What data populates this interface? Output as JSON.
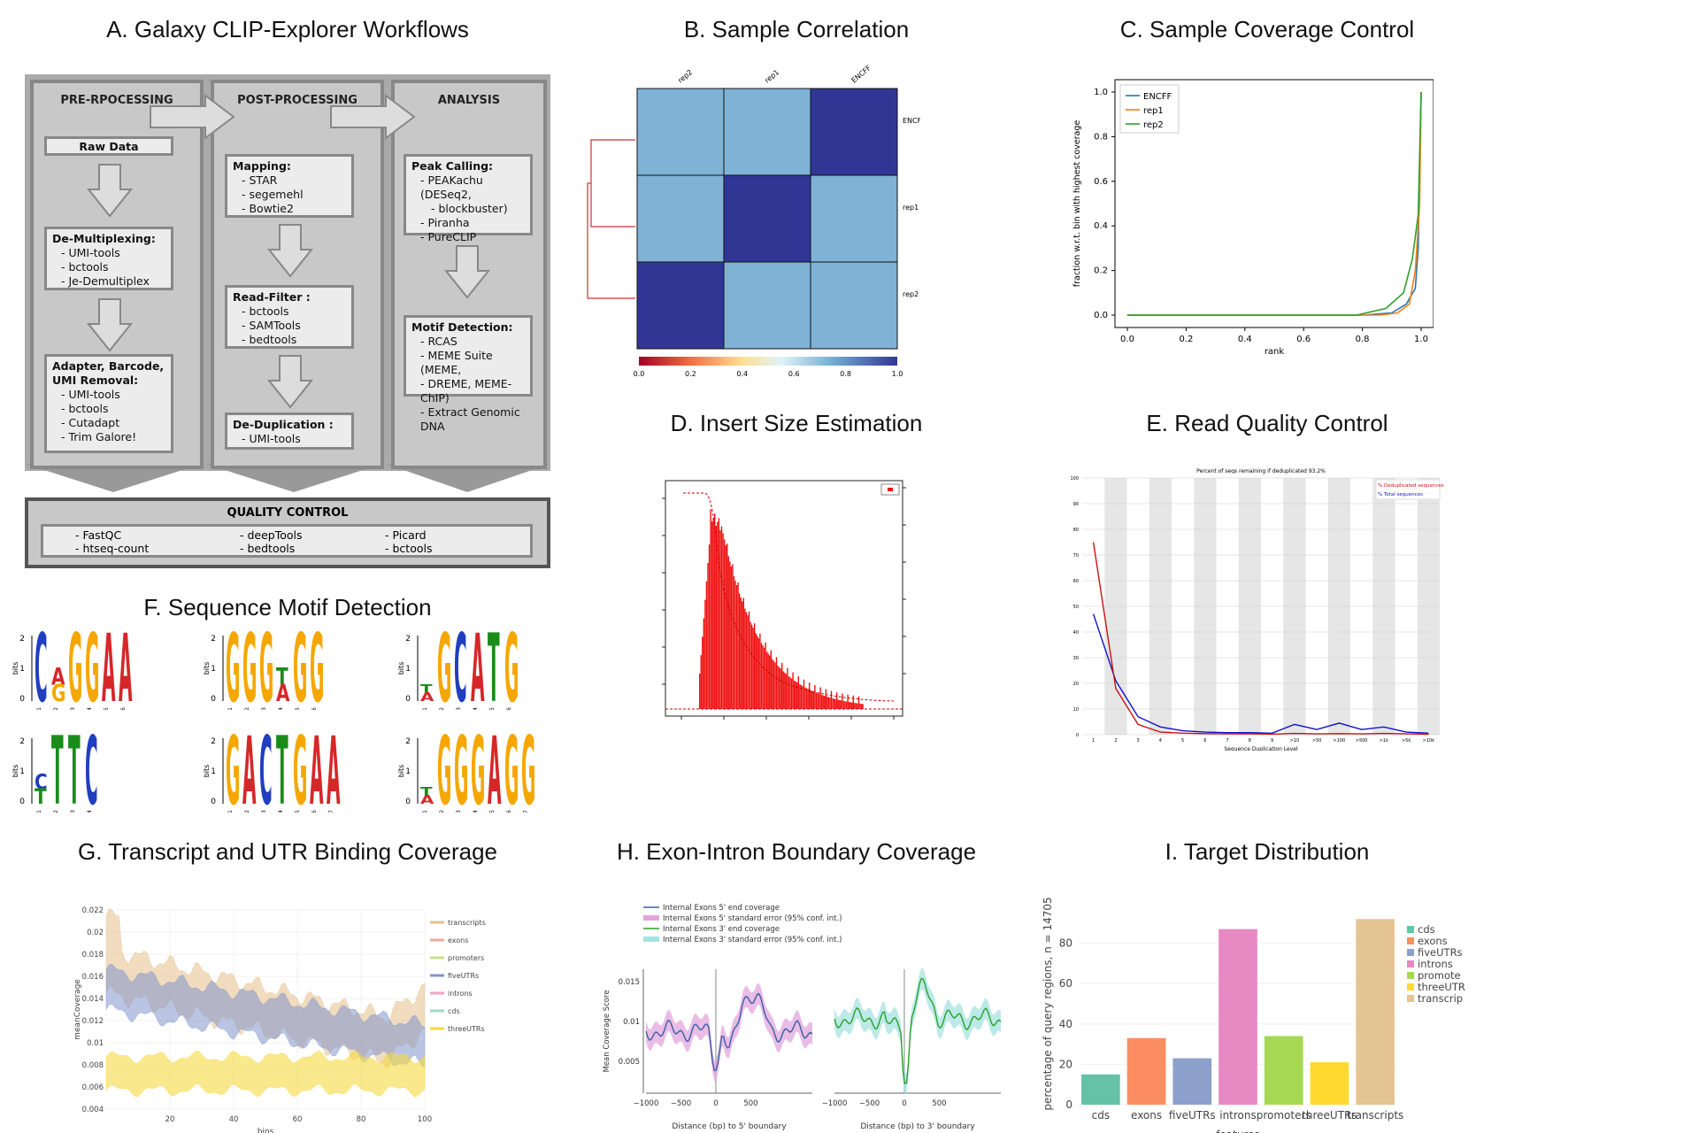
{
  "panels": {
    "a": "A. Galaxy CLIP-Explorer Workflows",
    "b": "B. Sample Correlation",
    "c": "C. Sample Coverage Control",
    "d": "D. Insert Size Estimation",
    "e": "E. Read Quality Control",
    "f": "F. Sequence Motif Detection",
    "g": "G. Transcript and UTR Binding Coverage",
    "h": "H. Exon-Intron Boundary Coverage",
    "i": "I. Target Distribution"
  },
  "workflow": {
    "columns": [
      "PRE-RPOCESSING",
      "POST-PROCESSING",
      "ANALYSIS"
    ],
    "raw_data": "Raw Data",
    "demux": {
      "title": "De-Multiplexing:",
      "items": [
        "UMI-tools",
        "bctools",
        "Je-Demultiplex"
      ]
    },
    "adapter": {
      "title1": "Adapter, Barcode,",
      "title2": "UMI Removal:",
      "items": [
        "UMI-tools",
        "bctools",
        "Cutadapt",
        "Trim Galore!"
      ]
    },
    "mapping": {
      "title": "Mapping:",
      "items": [
        "STAR",
        "segemehl",
        "Bowtie2"
      ]
    },
    "readfilter": {
      "title": "Read-Filter :",
      "items": [
        "bctools",
        "SAMTools",
        "bedtools"
      ]
    },
    "dedup": {
      "title": "De-Duplication :",
      "items": [
        "UMI-tools"
      ]
    },
    "peak": {
      "title": "Peak Calling:",
      "items": [
        "PEAKachu (DESeq2,",
        "blockbuster)",
        "Piranha",
        "PureCLIP"
      ]
    },
    "motif": {
      "title": "Motif Detection:",
      "items": [
        "RCAS",
        "MEME Suite (MEME,",
        "DREME, MEME-ChIP)",
        "Extract Genomic DNA"
      ]
    },
    "qc_title": "QUALITY CONTROL",
    "qc_items": [
      "FastQC",
      "htseq-count",
      "deepTools",
      "bedtools",
      "Picard",
      "bctools"
    ]
  },
  "correlation": {
    "col_labels": [
      "rep2",
      "rep1",
      "ENCFF"
    ],
    "row_labels": [
      "ENCFF",
      "rep1",
      "rep2"
    ],
    "matrix": [
      [
        0.6,
        0.6,
        1.0
      ],
      [
        0.6,
        1.0,
        0.6
      ],
      [
        1.0,
        0.6,
        0.6
      ]
    ],
    "colorbar_ticks": [
      "0.0",
      "0.2",
      "0.4",
      "0.6",
      "0.8",
      "1.0"
    ],
    "colors": {
      "high": "#313695",
      "mid": "#7fb2d5"
    }
  },
  "coverage": {
    "ylabel": "fraction w.r.t. bin with highest coverage",
    "xlabel": "rank",
    "xticks": [
      "0.0",
      "0.2",
      "0.4",
      "0.6",
      "0.8",
      "1.0"
    ],
    "yticks": [
      "0.0",
      "0.2",
      "0.4",
      "0.6",
      "0.8",
      "1.0"
    ],
    "series": [
      {
        "name": "ENCFF",
        "color": "#1f77b4"
      },
      {
        "name": "rep1",
        "color": "#ff7f0e"
      },
      {
        "name": "rep2",
        "color": "#2ca02c"
      }
    ]
  },
  "readquality": {
    "title": "Percent of seqs remaining if deduplicated 93.2%",
    "legend": [
      "% Deduplicated sequences",
      "% Total sequences"
    ],
    "xlabel": "Sequence Duplication Level",
    "yticks": [
      "100",
      "90",
      "80",
      "70",
      "60",
      "50",
      "40",
      "30",
      "20",
      "10",
      "0"
    ],
    "xticks": [
      "1",
      "2",
      "3",
      "4",
      "5",
      "6",
      "7",
      "8",
      "9",
      ">10",
      ">50",
      ">100",
      ">500",
      ">1k",
      ">5k",
      ">10k"
    ],
    "dedup": [
      75,
      18,
      4,
      1,
      0.6,
      0.4,
      0.3,
      0.3,
      0.2,
      0.5,
      0.3,
      0.4,
      0.3,
      0.5,
      0.3,
      0.2
    ],
    "total": [
      47,
      21,
      7,
      3,
      1.5,
      1,
      0.8,
      0.8,
      0.6,
      4,
      2,
      4.5,
      2,
      3,
      1,
      0.6
    ]
  },
  "motifs": [
    {
      "letters": [
        "C",
        "A",
        "G",
        "G",
        "A",
        "A"
      ],
      "sub": {
        "1": "G"
      },
      "heights": [
        1.0,
        0.5,
        1.0,
        1.0,
        1.0,
        1.0
      ]
    },
    {
      "letters": [
        "G",
        "G",
        "G",
        "T",
        "G",
        "G"
      ],
      "sub": {
        "3": "A"
      },
      "heights": [
        1.0,
        1.0,
        1.0,
        0.5,
        1.0,
        1.0
      ]
    },
    {
      "letters": [
        "T",
        "G",
        "C",
        "A",
        "T",
        "G"
      ],
      "sub": {
        "0": "A"
      },
      "heights": [
        0.25,
        1.0,
        1.0,
        1.0,
        1.0,
        1.0
      ]
    },
    {
      "letters": [
        "C",
        "T",
        "T",
        "C"
      ],
      "sub": {
        "0": "T"
      },
      "heights": [
        0.45,
        1.0,
        1.0,
        1.0
      ]
    },
    {
      "letters": [
        "G",
        "A",
        "C",
        "T",
        "G",
        "A",
        "A"
      ],
      "sub": {},
      "heights": [
        1.0,
        1.0,
        1.0,
        1.0,
        1.0,
        1.0,
        1.0
      ]
    },
    {
      "letters": [
        "T",
        "G",
        "G",
        "G",
        "A",
        "G",
        "G"
      ],
      "sub": {
        "0": "A"
      },
      "heights": [
        0.25,
        1.0,
        1.0,
        1.0,
        1.0,
        1.0,
        1.0
      ]
    }
  ],
  "motif_ylabel": "bits",
  "motif_colors": {
    "A": "#d62728",
    "C": "#1f3fbf",
    "G": "#f5a700",
    "T": "#198c19"
  },
  "binding": {
    "ylabel": "meanCoverage",
    "xlabel": "bins",
    "yticks": [
      "0.022",
      "0.02",
      "0.018",
      "0.016",
      "0.014",
      "0.012",
      "0.01",
      "0.008",
      "0.006",
      "0.004"
    ],
    "xticks": [
      "20",
      "40",
      "60",
      "80",
      "100"
    ],
    "legend": [
      {
        "name": "transcripts",
        "color": "#e6c08a"
      },
      {
        "name": "exons",
        "color": "#f4a99b"
      },
      {
        "name": "promoters",
        "color": "#c6e087"
      },
      {
        "name": "fiveUTRs",
        "color": "#7f95cc"
      },
      {
        "name": "introns",
        "color": "#f4a4c6"
      },
      {
        "name": "cds",
        "color": "#9fd9c7"
      },
      {
        "name": "threeUTRs",
        "color": "#f6d940"
      }
    ]
  },
  "boundary": {
    "legend": [
      {
        "name": "Internal Exons 5' end coverage",
        "color": "#3a5fa8"
      },
      {
        "name": "Internal Exons 5' standard error (95% conf. int.)",
        "color": "#e2a6dc"
      },
      {
        "name": "Internal Exons 3' end coverage",
        "color": "#2ca02c"
      },
      {
        "name": "Internal Exons 3' standard error (95% conf. int.)",
        "color": "#a6e3e0"
      }
    ],
    "ylabel": "Mean Coverage Score",
    "yticks": [
      "0.015",
      "0.01",
      "0.005"
    ],
    "xticks": [
      "−1000",
      "−500",
      "0",
      "500"
    ],
    "xlabel_left": "Distance (bp) to 5' boundary",
    "xlabel_right": "Distance (bp) to 3' boundary"
  },
  "target": {
    "ylabel": "percentage of query regions, n = 14705",
    "xlabel": "features",
    "yticks": [
      "0",
      "20",
      "40",
      "60",
      "80"
    ],
    "categories": [
      "cds",
      "exons",
      "fiveUTRs",
      "introns",
      "promoters",
      "threeUTRs",
      "transcripts"
    ],
    "values": [
      15,
      33,
      23,
      87,
      34,
      21,
      92
    ],
    "colors": [
      "#66c2a5",
      "#fc8d62",
      "#8da0cb",
      "#e78ac3",
      "#a6d854",
      "#ffd92f",
      "#e5c494"
    ],
    "legend": [
      "cds",
      "exons",
      "fiveUTRs",
      "introns",
      "promote",
      "threeUTR",
      "transcrip"
    ]
  },
  "chart_data": [
    {
      "type": "heatmap",
      "title": "B. Sample Correlation",
      "rows": [
        "ENCFF",
        "rep1",
        "rep2"
      ],
      "cols": [
        "rep2",
        "rep1",
        "ENCFF"
      ],
      "values": [
        [
          0.6,
          0.6,
          1.0
        ],
        [
          0.6,
          1.0,
          0.6
        ],
        [
          1.0,
          0.6,
          0.6
        ]
      ],
      "colorbar": [
        0.0,
        1.0
      ]
    },
    {
      "type": "line",
      "title": "C. Sample Coverage Control",
      "xlabel": "rank",
      "ylabel": "fraction w.r.t. bin with highest coverage",
      "xlim": [
        0.0,
        1.0
      ],
      "ylim": [
        0.0,
        1.0
      ],
      "x": [
        0.0,
        0.8,
        0.9,
        0.95,
        0.98,
        1.0
      ],
      "series": [
        {
          "name": "ENCFF",
          "values": [
            0.0,
            0.0,
            0.01,
            0.05,
            0.12,
            1.0
          ]
        },
        {
          "name": "rep1",
          "values": [
            0.0,
            0.0,
            0.0,
            0.03,
            0.2,
            1.0
          ]
        },
        {
          "name": "rep2",
          "values": [
            0.0,
            0.0,
            0.03,
            0.1,
            0.25,
            1.0
          ]
        }
      ]
    },
    {
      "type": "line",
      "title": "E. Read Quality Control",
      "xlabel": "Sequence Duplication Level",
      "categories": [
        "1",
        "2",
        "3",
        "4",
        "5",
        "6",
        "7",
        "8",
        "9",
        ">10",
        ">50",
        ">100",
        ">500",
        ">1k",
        ">5k",
        ">10k"
      ],
      "ylim": [
        0,
        100
      ],
      "series": [
        {
          "name": "% Deduplicated sequences",
          "values": [
            75,
            18,
            4,
            1,
            0.6,
            0.4,
            0.3,
            0.3,
            0.2,
            0.5,
            0.3,
            0.4,
            0.3,
            0.5,
            0.3,
            0.2
          ]
        },
        {
          "name": "% Total sequences",
          "values": [
            47,
            21,
            7,
            3,
            1.5,
            1,
            0.8,
            0.8,
            0.6,
            4,
            2,
            4.5,
            2,
            3,
            1,
            0.6
          ]
        }
      ]
    },
    {
      "type": "bar",
      "title": "I. Target Distribution",
      "xlabel": "features",
      "ylabel": "percentage of query regions, n = 14705",
      "categories": [
        "cds",
        "exons",
        "fiveUTRs",
        "introns",
        "promoters",
        "threeUTRs",
        "transcripts"
      ],
      "values": [
        15,
        33,
        23,
        87,
        34,
        21,
        92
      ],
      "ylim": [
        0,
        100
      ]
    }
  ]
}
